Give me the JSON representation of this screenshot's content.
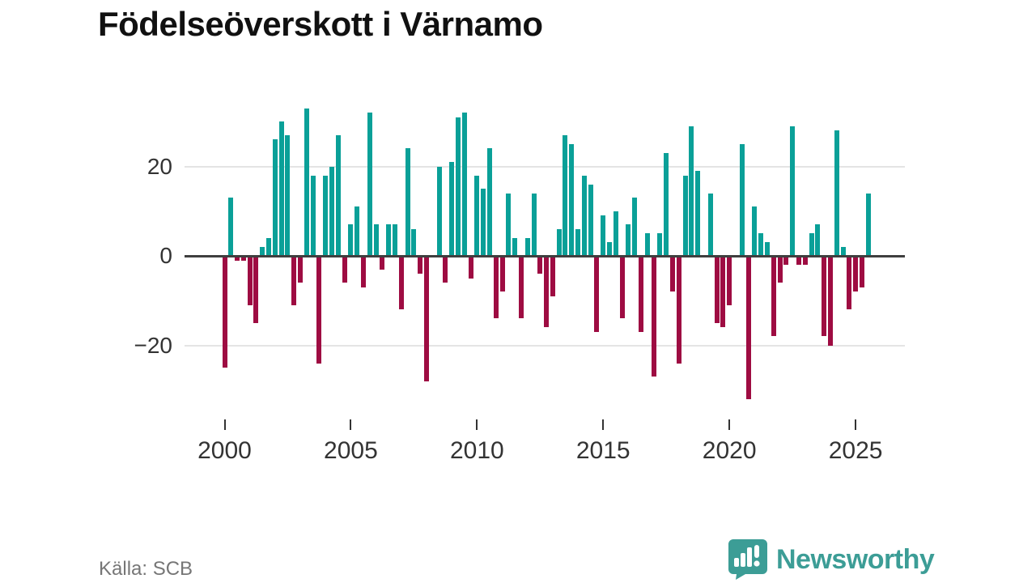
{
  "title": "Födelseöverskott i Värnamo",
  "source": "Källa: SCB",
  "brand": {
    "name": "Newsworthy",
    "color": "#3c9d96"
  },
  "colors": {
    "positive_bar": "#0aa098",
    "negative_bar": "#9e0c42",
    "gridline": "#e4e4e4",
    "zero_line": "#3f3f3f",
    "axis_text": "#333333",
    "title_text": "#111111",
    "source_text": "#767676"
  },
  "chart_data": {
    "type": "bar",
    "title": "Födelseöverskott i Värnamo",
    "frequency": "quarterly",
    "start_period": "2000-Q1",
    "end_period": "2025-Q3",
    "x_tick_labels": [
      "2000",
      "2005",
      "2010",
      "2015",
      "2020",
      "2025"
    ],
    "y_ticks": [
      20,
      0,
      -20
    ],
    "ylim": [
      -34,
      35
    ],
    "grid": true,
    "legend": "none",
    "values": [
      -25,
      13,
      -1,
      -1,
      -11,
      -15,
      2,
      4,
      26,
      30,
      27,
      -11,
      -6,
      33,
      18,
      -24,
      18,
      20,
      27,
      -6,
      7,
      11,
      -7,
      32,
      7,
      -3,
      7,
      7,
      -12,
      24,
      6,
      -4,
      -28,
      0,
      20,
      -6,
      21,
      31,
      32,
      -5,
      18,
      15,
      24,
      -14,
      -8,
      14,
      4,
      -14,
      4,
      14,
      -4,
      -16,
      -9,
      6,
      27,
      25,
      6,
      18,
      16,
      -17,
      9,
      3,
      10,
      -14,
      7,
      13,
      -17,
      5,
      -27,
      5,
      23,
      -8,
      -24,
      18,
      29,
      19,
      0,
      14,
      -15,
      -16,
      -11,
      0,
      25,
      -32,
      11,
      5,
      3,
      -18,
      -6,
      -2,
      29,
      -2,
      -2,
      5,
      7,
      -18,
      -20,
      28,
      2,
      -12,
      -8,
      -7,
      14
    ]
  }
}
